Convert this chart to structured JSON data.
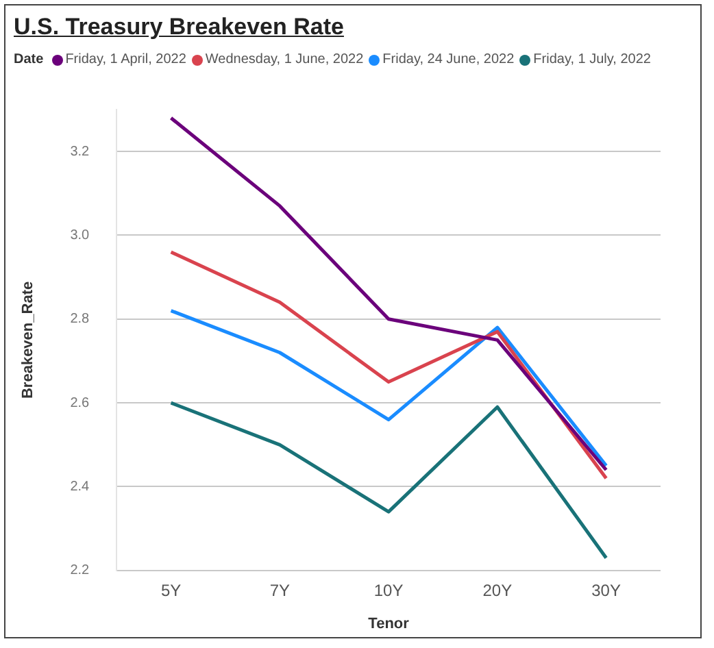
{
  "chart_data": {
    "type": "line",
    "title": "U.S. Treasury Breakeven Rate",
    "legend_title": "Date",
    "xlabel": "Tenor",
    "ylabel": "Breakeven_Rate",
    "categories": [
      "5Y",
      "7Y",
      "10Y",
      "20Y",
      "30Y"
    ],
    "series": [
      {
        "name": "Friday, 1 April, 2022",
        "color": "#6b007b",
        "values": [
          3.28,
          3.07,
          2.8,
          2.75,
          2.44
        ]
      },
      {
        "name": "Wednesday, 1 June, 2022",
        "color": "#d9434e",
        "values": [
          2.96,
          2.84,
          2.65,
          2.77,
          2.42
        ]
      },
      {
        "name": "Friday, 24 June, 2022",
        "color": "#1a8cff",
        "values": [
          2.82,
          2.72,
          2.56,
          2.78,
          2.45
        ]
      },
      {
        "name": "Friday, 1 July, 2022",
        "color": "#197278",
        "values": [
          2.6,
          2.5,
          2.34,
          2.59,
          2.23
        ]
      }
    ],
    "ylim": [
      2.2,
      3.3
    ],
    "yticks": [
      2.2,
      2.4,
      2.6,
      2.8,
      {
        "value": 3,
        "label": "3.0"
      },
      3.2
    ],
    "grid": "y",
    "legend": "top left",
    "marker": "none",
    "line_style": "solid"
  }
}
